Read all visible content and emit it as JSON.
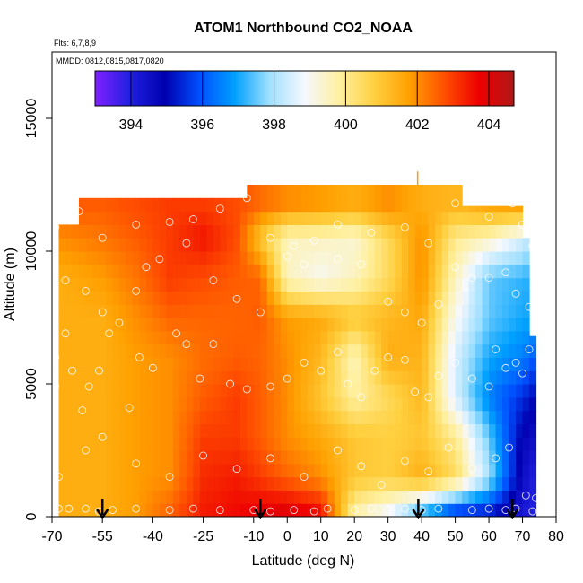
{
  "chart_data": {
    "type": "heatmap",
    "title": "ATOM1 Northbound CO2_NOAA",
    "subtitle_lines": [
      "Flts: 6,7,8,9",
      "MMDD: 0812,0815,0817,0820"
    ],
    "xlabel": "Latitude (deg N)",
    "ylabel": "Altitude (m)",
    "x_ticks": [
      -70,
      -55,
      -40,
      -25,
      -10,
      0,
      10,
      20,
      30,
      40,
      50,
      60,
      70,
      80
    ],
    "y_ticks": [
      0,
      5000,
      10000,
      15000
    ],
    "xlim": [
      -70,
      80
    ],
    "ylim": [
      0,
      17500
    ],
    "colorbar": {
      "min": 393,
      "max": 404.7,
      "tick_values": [
        394,
        396,
        398,
        400,
        402,
        404
      ],
      "colors": [
        "#8020ff",
        "#2020e0",
        "#0000b0",
        "#0050ff",
        "#00a0ff",
        "#a0e0ff",
        "#f5f8ff",
        "#fff0a0",
        "#ffd040",
        "#ffa000",
        "#ff5000",
        "#ee0000",
        "#b01818"
      ]
    },
    "flight_markers_lat": [
      -55,
      -8,
      39,
      67
    ],
    "grid_values": {
      "lats": [
        -68,
        -55,
        -45,
        -35,
        -25,
        -15,
        -8,
        0,
        10,
        20,
        30,
        40,
        50,
        60,
        70,
        74
      ],
      "alts": [
        250,
        1500,
        3000,
        4500,
        6000,
        7500,
        9000,
        10500,
        11700
      ],
      "rows": [
        [
          401.5,
          401.5,
          401.8,
          402.5,
          403.4,
          403.6,
          403.8,
          403.9,
          403.5,
          399.8,
          399.0,
          397.5,
          396.0,
          395.5,
          394.2,
          394.0
        ],
        [
          401.5,
          401.5,
          401.8,
          402.0,
          403.2,
          403.4,
          403.0,
          402.5,
          402.0,
          401.0,
          400.8,
          401.5,
          400.5,
          398.0,
          394.5,
          394.0
        ],
        [
          401.5,
          401.5,
          401.8,
          402.0,
          403.0,
          403.0,
          402.6,
          402.0,
          401.6,
          401.0,
          400.8,
          401.0,
          400.0,
          397.5,
          394.8,
          394.5
        ],
        [
          401.5,
          401.5,
          401.8,
          402.0,
          402.6,
          403.0,
          402.6,
          402.0,
          401.0,
          399.8,
          400.5,
          401.3,
          398.5,
          396.5,
          395.5,
          395.0
        ],
        [
          401.5,
          401.5,
          401.8,
          402.0,
          402.4,
          402.6,
          402.5,
          402.0,
          401.3,
          399.5,
          401.5,
          401.4,
          398.5,
          397.0,
          396.5,
          396.0
        ],
        [
          401.5,
          401.5,
          402.0,
          402.5,
          402.5,
          402.5,
          402.6,
          401.8,
          401.6,
          401.0,
          401.3,
          401.6,
          399.0,
          397.5,
          397.0,
          397.0
        ],
        [
          401.5,
          401.8,
          402.3,
          403.0,
          402.8,
          402.6,
          402.5,
          399.5,
          399.0,
          399.5,
          400.5,
          402.0,
          399.5,
          397.5,
          397.2,
          397.0
        ],
        [
          402.0,
          402.3,
          402.6,
          403.0,
          403.5,
          402.8,
          401.0,
          399.5,
          399.5,
          399.3,
          400.5,
          402.0,
          400.0,
          399.5,
          398.5,
          398.0
        ],
        [
          402.6,
          402.6,
          402.8,
          403.0,
          403.0,
          402.8,
          402.4,
          402.0,
          401.8,
          401.5,
          402.0,
          401.5,
          401.3,
          401.8,
          402.0,
          401.8
        ]
      ]
    },
    "top_extent": [
      {
        "lat_from": -68,
        "lat_to": -62,
        "alt": 11000
      },
      {
        "lat_from": -62,
        "lat_to": -12,
        "alt": 12000
      },
      {
        "lat_from": -12,
        "lat_to": 52,
        "alt": 12500
      },
      {
        "lat_from": 52,
        "lat_to": 70,
        "alt": 11700
      },
      {
        "lat_from": 70,
        "lat_to": 72,
        "alt": 10500
      },
      {
        "lat_from": 72,
        "lat_to": 74,
        "alt": 6800
      }
    ],
    "obs_points": [
      [
        -68,
        300
      ],
      [
        -65,
        300
      ],
      [
        -60,
        300
      ],
      [
        -56,
        200
      ],
      [
        -52,
        250
      ],
      [
        -45,
        300
      ],
      [
        -35,
        250
      ],
      [
        -28,
        300
      ],
      [
        -20,
        250
      ],
      [
        -10,
        250
      ],
      [
        -5,
        200
      ],
      [
        2,
        250
      ],
      [
        8,
        200
      ],
      [
        12,
        300
      ],
      [
        20,
        250
      ],
      [
        25,
        300
      ],
      [
        30,
        250
      ],
      [
        35,
        300
      ],
      [
        40,
        250
      ],
      [
        45,
        300
      ],
      [
        55,
        250
      ],
      [
        60,
        300
      ],
      [
        65,
        250
      ],
      [
        68,
        300
      ],
      [
        73,
        200
      ],
      [
        -69,
        6000
      ],
      [
        -69,
        4900
      ],
      [
        -66,
        6900
      ],
      [
        -64,
        5500
      ],
      [
        -61,
        4000
      ],
      [
        -59,
        4900
      ],
      [
        -56,
        5500
      ],
      [
        -53,
        6900
      ],
      [
        -47,
        4100
      ],
      [
        -44,
        6000
      ],
      [
        -40,
        5600
      ],
      [
        -33,
        6900
      ],
      [
        -30,
        6500
      ],
      [
        -26,
        5200
      ],
      [
        -22,
        6500
      ],
      [
        -17,
        5000
      ],
      [
        -12,
        4800
      ],
      [
        -5,
        4900
      ],
      [
        0,
        5200
      ],
      [
        5,
        5800
      ],
      [
        10,
        5500
      ],
      [
        15,
        6200
      ],
      [
        18,
        5000
      ],
      [
        22,
        4500
      ],
      [
        26,
        5500
      ],
      [
        30,
        6000
      ],
      [
        35,
        5900
      ],
      [
        38,
        4700
      ],
      [
        42,
        4500
      ],
      [
        45,
        5300
      ],
      [
        50,
        5800
      ],
      [
        55,
        5200
      ],
      [
        60,
        4900
      ],
      [
        62,
        6300
      ],
      [
        65,
        5600
      ],
      [
        68,
        5800
      ],
      [
        70,
        5400
      ],
      [
        72,
        6300
      ],
      [
        -66,
        8900
      ],
      [
        -60,
        8500
      ],
      [
        -55,
        7700
      ],
      [
        -50,
        7300
      ],
      [
        -45,
        8500
      ],
      [
        -42,
        9400
      ],
      [
        -38,
        9700
      ],
      [
        -30,
        10300
      ],
      [
        -22,
        8900
      ],
      [
        -15,
        8200
      ],
      [
        -8,
        7700
      ],
      [
        0,
        9800
      ],
      [
        5,
        9500
      ],
      [
        15,
        9700
      ],
      [
        22,
        9500
      ],
      [
        30,
        8100
      ],
      [
        35,
        7700
      ],
      [
        40,
        7300
      ],
      [
        45,
        8000
      ],
      [
        50,
        9400
      ],
      [
        55,
        9000
      ],
      [
        60,
        9000
      ],
      [
        65,
        9200
      ],
      [
        68,
        8400
      ],
      [
        72,
        7900
      ],
      [
        -69,
        10900
      ],
      [
        -68,
        11200
      ],
      [
        -62,
        11500
      ],
      [
        -55,
        10500
      ],
      [
        -45,
        11000
      ],
      [
        -35,
        11100
      ],
      [
        -28,
        11200
      ],
      [
        -20,
        11600
      ],
      [
        -12,
        12000
      ],
      [
        -5,
        10500
      ],
      [
        2,
        10200
      ],
      [
        8,
        10400
      ],
      [
        15,
        11000
      ],
      [
        25,
        10700
      ],
      [
        35,
        10900
      ],
      [
        42,
        10300
      ],
      [
        50,
        11800
      ],
      [
        60,
        11300
      ],
      [
        67,
        11800
      ],
      [
        70,
        11000
      ],
      [
        73,
        10200
      ],
      [
        -72,
        2100
      ],
      [
        -68,
        1500
      ],
      [
        -60,
        2500
      ],
      [
        -55,
        3000
      ],
      [
        -45,
        2000
      ],
      [
        -35,
        1500
      ],
      [
        -25,
        2300
      ],
      [
        -15,
        1800
      ],
      [
        -5,
        2200
      ],
      [
        5,
        1500
      ],
      [
        15,
        2500
      ],
      [
        22,
        1900
      ],
      [
        28,
        1200
      ],
      [
        35,
        2100
      ],
      [
        42,
        1700
      ],
      [
        48,
        2600
      ],
      [
        55,
        1800
      ],
      [
        62,
        2200
      ],
      [
        66,
        2600
      ],
      [
        71,
        800
      ],
      [
        74,
        700
      ]
    ]
  }
}
